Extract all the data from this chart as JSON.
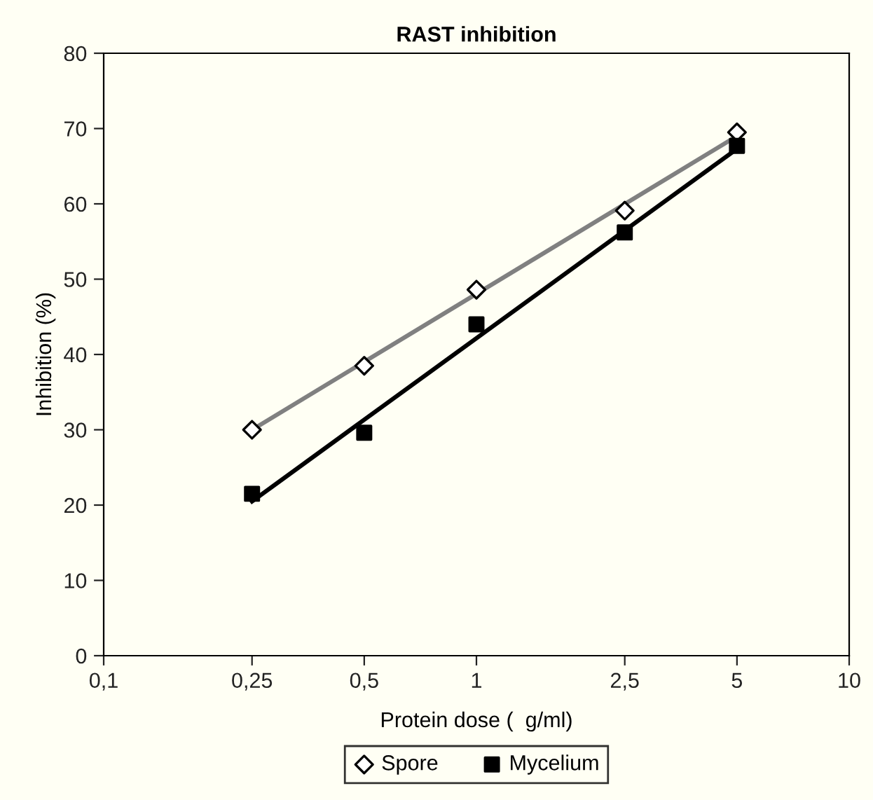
{
  "chart_data": {
    "type": "scatter",
    "title": "RAST inhibition",
    "xlabel": "Protein dose (  g/ml)",
    "ylabel": "Inhibition (%)",
    "log": "x",
    "xlim": [
      0.1,
      10
    ],
    "ylim": [
      0,
      80
    ],
    "grid": false,
    "legend": "bottom",
    "xticks": [
      {
        "value": 0.1,
        "label": "0,1"
      },
      {
        "value": 0.25,
        "label": "0,25"
      },
      {
        "value": 0.5,
        "label": "0,5"
      },
      1,
      {
        "value": 2.5,
        "label": "2,5"
      },
      5,
      10
    ],
    "yticks": [
      0,
      10,
      20,
      30,
      40,
      50,
      60,
      70,
      80
    ],
    "series": [
      {
        "name": "Spore",
        "marker": "diamond",
        "color": "#ffffff",
        "x": [
          0.25,
          0.5,
          1,
          2.5,
          5
        ],
        "values": [
          30,
          38.5,
          48.6,
          59.1,
          69.5
        ]
      },
      {
        "name": "Mycelium",
        "marker": "square",
        "color": "#000000",
        "x": [
          0.25,
          0.5,
          1,
          2.5,
          5
        ],
        "values": [
          21.5,
          29.6,
          44,
          56.2,
          67.7
        ]
      },
      {
        "type": "line",
        "color": "#808080",
        "x": [
          0.25,
          5
        ],
        "values": [
          30,
          69
        ]
      },
      {
        "type": "line",
        "color": "#000000",
        "x": [
          0.25,
          5
        ],
        "values": [
          20.5,
          67.3
        ]
      }
    ]
  }
}
